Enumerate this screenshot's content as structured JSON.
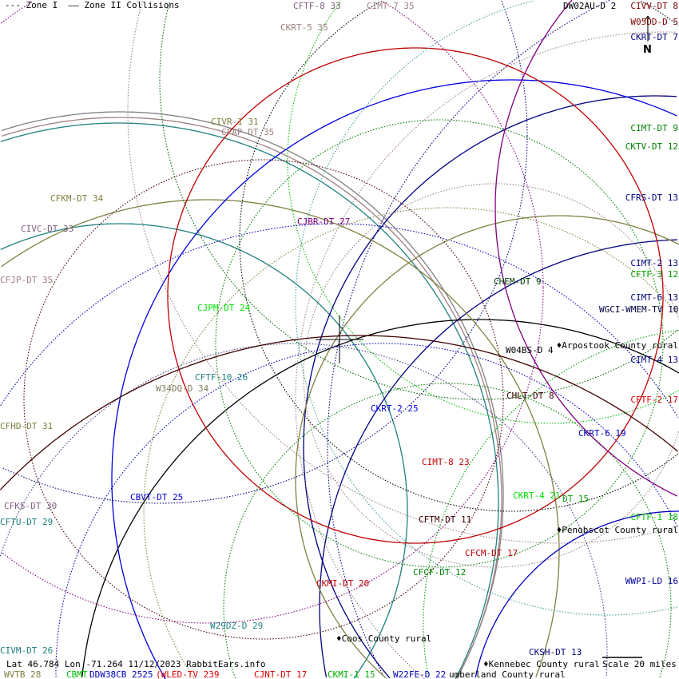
{
  "legend": {
    "zone1": "--- Zone I",
    "zone2": "—— Zone II Collisions"
  },
  "compass": "N",
  "footer": {
    "coords": "Lat 46.784 Lon -71.264 11/12/2023 RabbitEars.info",
    "scale": "Scale 20 miles"
  },
  "places": [
    "♦Coos County rural",
    "♦Kennebec County rural",
    "♦Arpostook County rural",
    "♦Penobscot County rural",
    "umberland County rural"
  ],
  "stations": [
    {
      "label": "CFTF-8 33",
      "color": "#806080"
    },
    {
      "label": "CIMT-7 35",
      "color": "#a08080"
    },
    {
      "label": "CKRT-5 35",
      "color": "#a08080"
    },
    {
      "label": "CIVR-1 31",
      "color": "#808040"
    },
    {
      "label": "CFAP-DT 35",
      "color": "#a08080"
    },
    {
      "label": "CJBR-DT 27",
      "color": "#800080"
    },
    {
      "label": "CFKM-DT 34",
      "color": "#808040"
    },
    {
      "label": "CIVC-DT 33",
      "color": "#806080"
    },
    {
      "label": "CFJP-DT 35",
      "color": "#a08080"
    },
    {
      "label": "CJPM-DT 24",
      "color": "#00e000"
    },
    {
      "label": "CFTF-10 26",
      "color": "#208080"
    },
    {
      "label": "W34DQ-D 34",
      "color": "#808060"
    },
    {
      "label": "CFHD-DT 31",
      "color": "#808040"
    },
    {
      "label": "CBVT-DT 25",
      "color": "#0000e0"
    },
    {
      "label": "CFKS-DT 30",
      "color": "#806080"
    },
    {
      "label": "CFTU-DT 29",
      "color": "#208080"
    },
    {
      "label": "CIVM-DT 26",
      "color": "#208080"
    },
    {
      "label": "WVTB 28",
      "color": "#808040"
    },
    {
      "label": "CBMT",
      "color": "#00c000"
    },
    {
      "label": "DDW38CB 2525",
      "color": "#0000c0"
    },
    {
      "label": "(WLED-TV 239",
      "color": "#e00000"
    },
    {
      "label": "CJNT-DT 17",
      "color": "#e00000"
    },
    {
      "label": "CKMI-1 15",
      "color": "#00b000"
    },
    {
      "label": "W22FE-D 22",
      "color": "#0000c0"
    },
    {
      "label": "CKSH-DT 13",
      "color": "#000080"
    },
    {
      "label": "W29DZ-D 29",
      "color": "#208080"
    },
    {
      "label": "CKMI-DT 20",
      "color": "#c00000"
    },
    {
      "label": "CFCF-DT 12",
      "color": "#008000"
    },
    {
      "label": "CFCM-DT 17",
      "color": "#c00000"
    },
    {
      "label": "CFTM-DT 11",
      "color": "#400000"
    },
    {
      "label": "CIMT-8 23",
      "color": "#c00000"
    },
    {
      "label": "CKRT-2 25",
      "color": "#0000e0"
    },
    {
      "label": "CHLT-DT 8",
      "color": "#400000"
    },
    {
      "label": "W04BS-D 4",
      "color": "#000000"
    },
    {
      "label": "CIMT-4 13",
      "color": "#000080"
    },
    {
      "label": "CFTF-2 17",
      "color": "#e00000"
    },
    {
      "label": "CKRT-6 19",
      "color": "#0000c0"
    },
    {
      "label": "CKRT-4 21",
      "color": "#00e000"
    },
    {
      "label": "DT 15",
      "color": "#00a000"
    },
    {
      "label": "CFTF-1 18",
      "color": "#00c000"
    },
    {
      "label": "WWPI-LD 16",
      "color": "#0000a0"
    },
    {
      "label": "CHEM-DT 9",
      "color": "#004000"
    },
    {
      "label": "WGCI-WMEM-TV 10",
      "color": "#000040"
    },
    {
      "label": "CIMT-6 13",
      "color": "#000080"
    },
    {
      "label": "CFTF-3 12",
      "color": "#00a000"
    },
    {
      "label": "CIMT-2 13",
      "color": "#000080"
    },
    {
      "label": "CFRS-DT 13",
      "color": "#000080"
    },
    {
      "label": "CKTV-DT 12",
      "color": "#008000"
    },
    {
      "label": "CIMT-DT 9",
      "color": "#008000"
    },
    {
      "label": "CIVV-DT 8",
      "color": "#800000"
    },
    {
      "label": "W05DD-D 5",
      "color": "#800000"
    },
    {
      "label": "CKRT-DT 7",
      "color": "#000080"
    },
    {
      "label": "DW02AU-D 2",
      "color": "#000000"
    }
  ]
}
